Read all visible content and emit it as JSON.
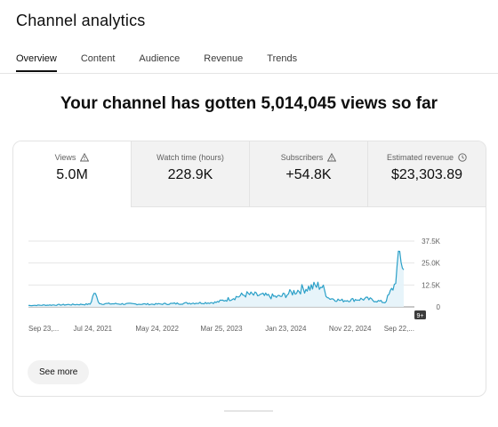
{
  "page": {
    "title": "Channel analytics",
    "tabs": [
      {
        "label": "Overview",
        "active": true
      },
      {
        "label": "Content"
      },
      {
        "label": "Audience"
      },
      {
        "label": "Revenue"
      },
      {
        "label": "Trends"
      }
    ],
    "headline": "Your channel has gotten 5,014,045 views so far"
  },
  "metrics": [
    {
      "label": "Views",
      "value": "5.0M",
      "icon": "warning-icon",
      "active": true
    },
    {
      "label": "Watch time (hours)",
      "value": "228.9K"
    },
    {
      "label": "Subscribers",
      "value": "+54.8K",
      "icon": "warning-icon"
    },
    {
      "label": "Estimated revenue",
      "value": "$23,303.89",
      "icon": "clock-icon"
    }
  ],
  "chart": {
    "marker_badge": "9+",
    "see_more_label": "See more"
  },
  "colors": {
    "line": "#2ba0c8",
    "area": "#e4f3f9",
    "text": "#0f0f0f",
    "muted": "#606060"
  },
  "chart_data": {
    "type": "area",
    "series": [
      {
        "values": [
          {
            "x": "Sep 23, 2019",
            "y": 800
          },
          {
            "x": "Jul 24, 2021",
            "y": 1500
          },
          {
            "x": "Aug 2021",
            "y": 8000
          },
          {
            "x": "Sep 2021",
            "y": 1800
          },
          {
            "x": "May 24, 2022",
            "y": 1500
          },
          {
            "x": "Mar 25, 2023",
            "y": 2500
          },
          {
            "x": "Sep 2023",
            "y": 7000
          },
          {
            "x": "Jan 23, 2024",
            "y": 5500
          },
          {
            "x": "Apr 2024",
            "y": 10000
          },
          {
            "x": "Jul 2024",
            "y": 12000
          },
          {
            "x": "Aug 2024",
            "y": 5000
          },
          {
            "x": "Nov 22, 2024",
            "y": 3500
          },
          {
            "x": "Mar 2025",
            "y": 4500
          },
          {
            "x": "Jun 2025",
            "y": 2500
          },
          {
            "x": "Aug 2025",
            "y": 12000
          },
          {
            "x": "Sep 2025",
            "y": 30000
          },
          {
            "x": "Sep 22, 2025",
            "y": 20000
          }
        ]
      }
    ],
    "x_ticks": [
      "Sep 23,...",
      "Jul 24, 2021",
      "May 24, 2022",
      "Mar 25, 2023",
      "Jan 23, 2024",
      "Nov 22, 2024",
      "Sep 22,..."
    ],
    "y_ticks": [
      "37.5K",
      "25.0K",
      "12.5K",
      "0"
    ],
    "ylim": [
      0,
      37500
    ],
    "grid": true
  }
}
